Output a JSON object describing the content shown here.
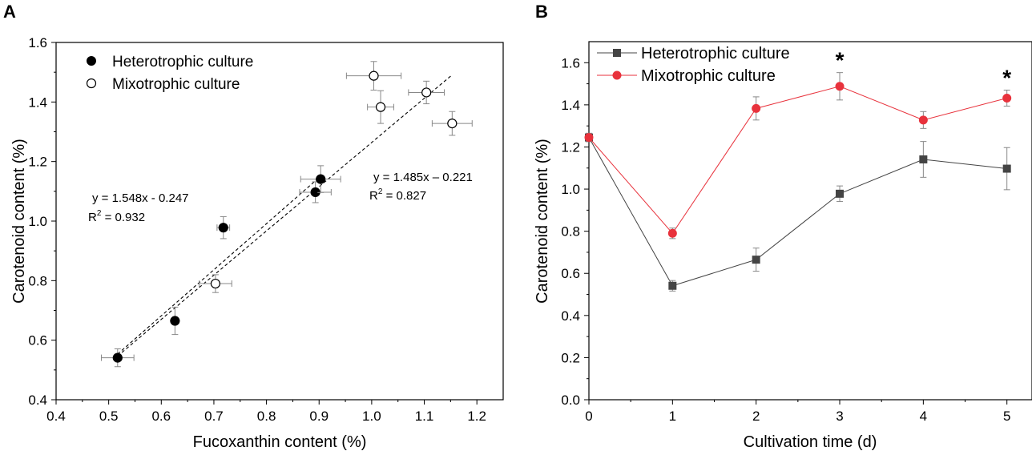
{
  "chart_data": [
    {
      "type": "scatter",
      "panel_label": "A",
      "xlabel": "Fucoxanthin content (%)",
      "ylabel": "Carotenoid content (%)",
      "xlim": [
        0.4,
        1.25
      ],
      "ylim": [
        0.4,
        1.6
      ],
      "xticks": [
        "0.4",
        "0.5",
        "0.6",
        "0.7",
        "0.8",
        "0.9",
        "1.0",
        "1.1",
        "1.2"
      ],
      "yticks": [
        "0.4",
        "0.6",
        "0.8",
        "1.0",
        "1.2",
        "1.4",
        "1.6"
      ],
      "series": [
        {
          "name": "Heterotrophic culture",
          "marker": "filled-circle",
          "points": [
            {
              "x": 0.517,
              "y": 0.541,
              "xerr": 0.031,
              "yerr": 0.03
            },
            {
              "x": 0.626,
              "y": 0.665,
              "xerr": 0.0,
              "yerr": 0.046
            },
            {
              "x": 0.718,
              "y": 0.978,
              "xerr": 0.012,
              "yerr": 0.037
            },
            {
              "x": 0.893,
              "y": 1.097,
              "xerr": 0.03,
              "yerr": 0.035
            },
            {
              "x": 0.903,
              "y": 1.141,
              "xerr": 0.038,
              "yerr": 0.045
            }
          ]
        },
        {
          "name": "Mixotrophic culture",
          "marker": "open-circle",
          "points": [
            {
              "x": 0.703,
              "y": 0.79,
              "xerr": 0.031,
              "yerr": 0.03
            },
            {
              "x": 1.004,
              "y": 1.488,
              "xerr": 0.052,
              "yerr": 0.048
            },
            {
              "x": 1.017,
              "y": 1.383,
              "xerr": 0.025,
              "yerr": 0.055
            },
            {
              "x": 1.104,
              "y": 1.432,
              "xerr": 0.034,
              "yerr": 0.038
            },
            {
              "x": 1.153,
              "y": 1.328,
              "xerr": 0.038,
              "yerr": 0.04
            }
          ]
        }
      ],
      "fits": [
        {
          "slope": 1.548,
          "intercept": -0.247,
          "x_range": [
            0.517,
            0.903
          ]
        },
        {
          "slope": 1.485,
          "intercept": -0.221,
          "x_range": [
            0.517,
            1.153
          ]
        }
      ],
      "annotations": {
        "het_eq": "y = 1.548x - 0.247",
        "het_r2_prefix": "R",
        "het_r2_exp": "2",
        "het_r2_value": " = 0.932",
        "mix_eq": "y = 1.485x – 0.221",
        "mix_r2_prefix": "R",
        "mix_r2_exp": "2",
        "mix_r2_value": " = 0.827"
      }
    },
    {
      "type": "line",
      "panel_label": "B",
      "xlabel": "Cultivation time (d)",
      "ylabel": "Carotenoid content (%)",
      "xlim": [
        0,
        5.3
      ],
      "ylim": [
        0,
        1.7
      ],
      "xticks": [
        "0",
        "1",
        "2",
        "3",
        "4",
        "5"
      ],
      "yticks": [
        "0.0",
        "0.2",
        "0.4",
        "0.6",
        "0.8",
        "1.0",
        "1.2",
        "1.4",
        "1.6"
      ],
      "x": [
        0,
        1,
        2,
        3,
        4,
        5
      ],
      "series": [
        {
          "name": "Heterotrophic culture",
          "color": "#444444",
          "marker": "square",
          "values": [
            1.245,
            0.541,
            0.665,
            0.978,
            1.141,
            1.097
          ],
          "errors": [
            0.02,
            0.025,
            0.055,
            0.037,
            0.085,
            0.1
          ]
        },
        {
          "name": "Mixotrophic culture",
          "color": "#e8323c",
          "marker": "circle",
          "values": [
            1.245,
            0.79,
            1.383,
            1.488,
            1.328,
            1.432
          ],
          "errors": [
            0.02,
            0.025,
            0.055,
            0.065,
            0.04,
            0.038
          ]
        }
      ],
      "significance": [
        {
          "x": 3,
          "label": "*"
        },
        {
          "x": 5,
          "label": "*"
        }
      ]
    }
  ]
}
